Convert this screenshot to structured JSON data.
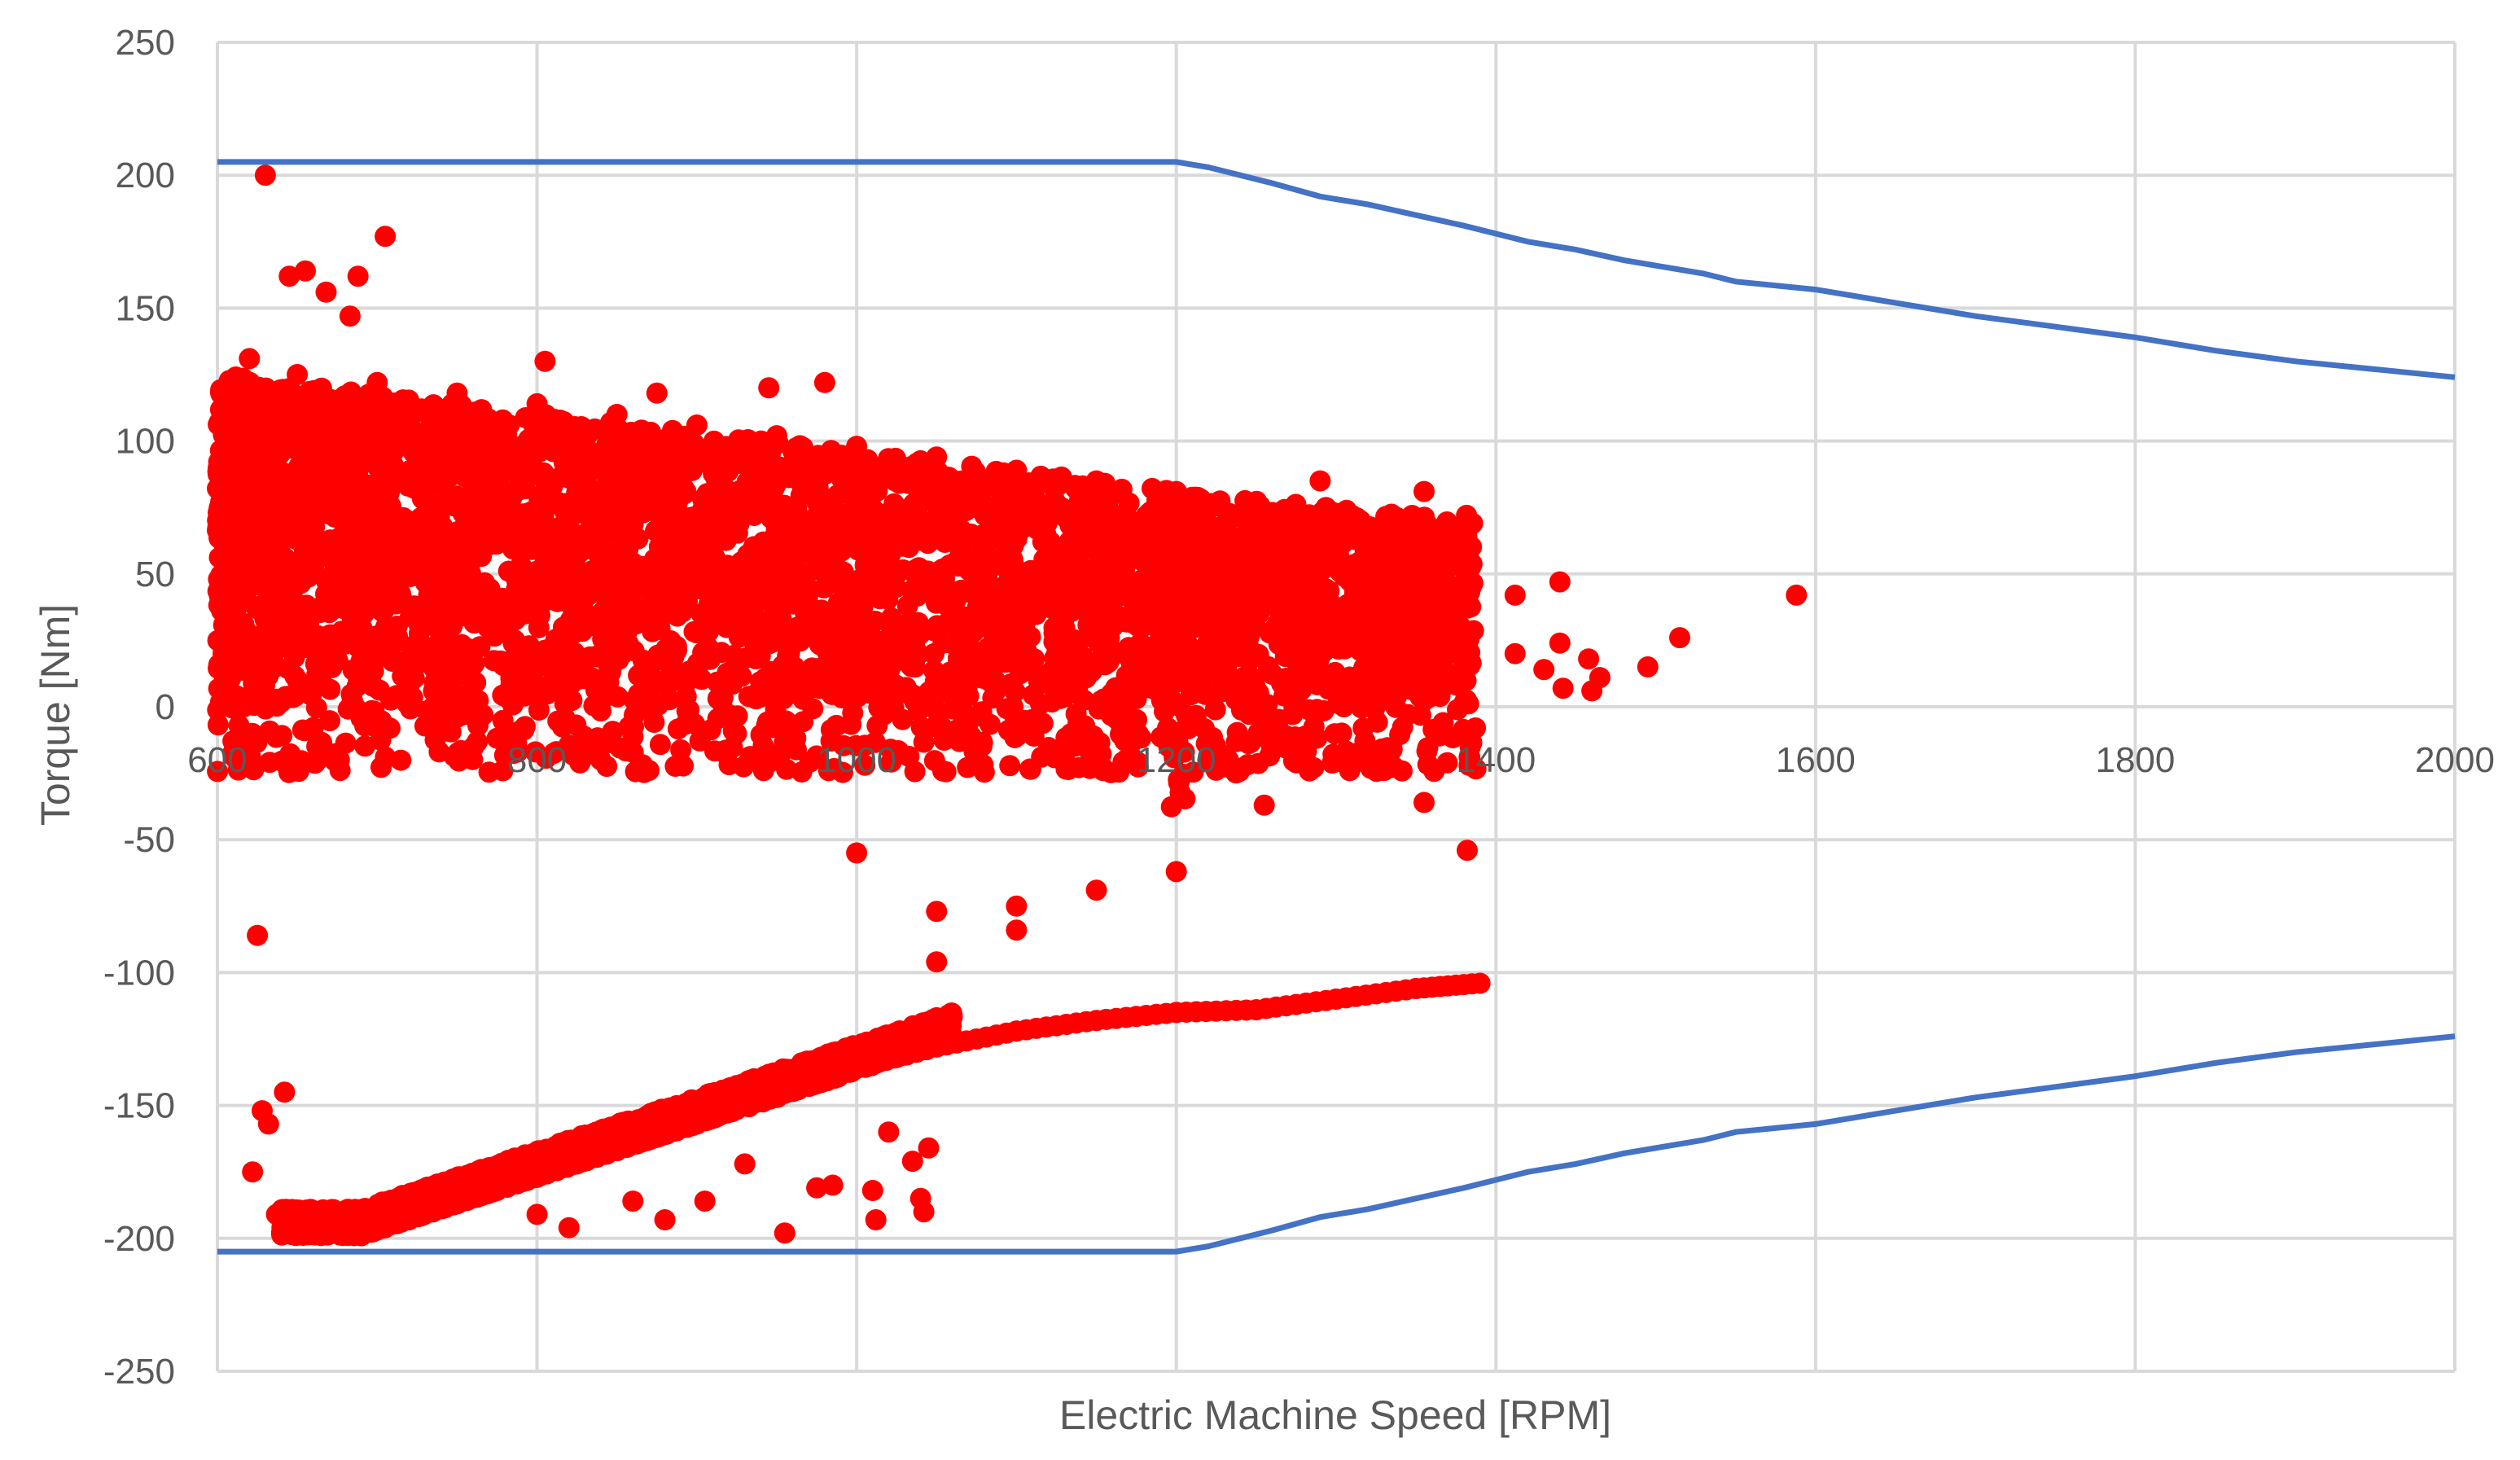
{
  "chart_data": {
    "type": "scatter",
    "title": "",
    "xlabel": "Electric Machine Speed [RPM]",
    "ylabel": "Torque [Nm]",
    "xlim": [
      600,
      2000
    ],
    "ylim": [
      -250,
      250
    ],
    "x_ticks": [
      600,
      800,
      1000,
      1200,
      1400,
      1600,
      1800,
      2000
    ],
    "y_ticks": [
      250,
      200,
      150,
      100,
      50,
      0,
      -50,
      -100,
      -150,
      -200,
      -250
    ],
    "x_tick_labels": [
      "600",
      "800",
      "1000",
      "1200",
      "1400",
      "1600",
      "1800",
      "2000"
    ],
    "y_tick_labels": [
      "250",
      "200",
      "150",
      "100",
      "50",
      "0",
      "-50",
      "-100",
      "-150",
      "-200",
      "-250"
    ],
    "grid": true,
    "legend": "none",
    "colors": {
      "limit_line": "#4472c4",
      "points": "#ff0000",
      "grid": "#d9d9d9",
      "text": "#595959"
    },
    "limit_upper": {
      "x": [
        600,
        1200,
        1220,
        1260,
        1290,
        1320,
        1350,
        1380,
        1400,
        1420,
        1450,
        1480,
        1500,
        1530,
        1550,
        1600,
        1650,
        1700,
        1750,
        1800,
        1850,
        1900,
        1950,
        2000
      ],
      "y": [
        205,
        205,
        203,
        197,
        192,
        189,
        185,
        181,
        178,
        175,
        172,
        168,
        166,
        163,
        160,
        157,
        152,
        147,
        143,
        139,
        134,
        130,
        127,
        124
      ]
    },
    "limit_lower": {
      "x": [
        600,
        1200,
        1220,
        1260,
        1290,
        1320,
        1350,
        1380,
        1400,
        1420,
        1450,
        1480,
        1500,
        1530,
        1550,
        1600,
        1650,
        1700,
        1750,
        1800,
        1850,
        1900,
        1950,
        2000
      ],
      "y": [
        -205,
        -205,
        -203,
        -197,
        -192,
        -189,
        -185,
        -181,
        -178,
        -175,
        -172,
        -168,
        -166,
        -163,
        -160,
        -157,
        -152,
        -147,
        -143,
        -139,
        -134,
        -130,
        -127,
        -124
      ]
    },
    "outlier_points": [
      {
        "x": 630,
        "y": 200
      },
      {
        "x": 705,
        "y": 177
      },
      {
        "x": 645,
        "y": 162
      },
      {
        "x": 655,
        "y": 164
      },
      {
        "x": 688,
        "y": 162
      },
      {
        "x": 668,
        "y": 156
      },
      {
        "x": 683,
        "y": 147
      },
      {
        "x": 620,
        "y": 131
      },
      {
        "x": 805,
        "y": 130
      },
      {
        "x": 980,
        "y": 122
      },
      {
        "x": 945,
        "y": 120
      },
      {
        "x": 875,
        "y": 118
      },
      {
        "x": 1290,
        "y": 85
      },
      {
        "x": 1355,
        "y": 81
      },
      {
        "x": 1310,
        "y": 72
      },
      {
        "x": 1345,
        "y": 58
      },
      {
        "x": 1440,
        "y": 47
      },
      {
        "x": 1412,
        "y": 42
      },
      {
        "x": 1588,
        "y": 42
      },
      {
        "x": 1515,
        "y": 26
      },
      {
        "x": 1440,
        "y": 24
      },
      {
        "x": 1412,
        "y": 20
      },
      {
        "x": 1458,
        "y": 18
      },
      {
        "x": 1495,
        "y": 15
      },
      {
        "x": 1430,
        "y": 14
      },
      {
        "x": 1465,
        "y": 11
      },
      {
        "x": 1442,
        "y": 7
      },
      {
        "x": 1460,
        "y": 6
      },
      {
        "x": 1362,
        "y": -9
      },
      {
        "x": 1270,
        "y": -12
      },
      {
        "x": 1310,
        "y": -22
      },
      {
        "x": 1355,
        "y": -36
      },
      {
        "x": 1255,
        "y": -37
      },
      {
        "x": 1382,
        "y": -54
      },
      {
        "x": 625,
        "y": -86
      },
      {
        "x": 628,
        "y": -152
      },
      {
        "x": 632,
        "y": -157
      },
      {
        "x": 642,
        "y": -145
      },
      {
        "x": 622,
        "y": -175
      },
      {
        "x": 637,
        "y": -191
      },
      {
        "x": 655,
        "y": -198
      },
      {
        "x": 800,
        "y": -191
      },
      {
        "x": 820,
        "y": -196
      },
      {
        "x": 860,
        "y": -186
      },
      {
        "x": 880,
        "y": -193
      },
      {
        "x": 905,
        "y": -186
      },
      {
        "x": 930,
        "y": -172
      },
      {
        "x": 955,
        "y": -198
      },
      {
        "x": 975,
        "y": -181
      },
      {
        "x": 985,
        "y": -180
      },
      {
        "x": 1010,
        "y": -182
      },
      {
        "x": 1035,
        "y": -171
      },
      {
        "x": 1040,
        "y": -185
      },
      {
        "x": 1042,
        "y": -190
      },
      {
        "x": 1045,
        "y": -166
      },
      {
        "x": 1012,
        "y": -193
      },
      {
        "x": 1020,
        "y": -160
      }
    ],
    "upper_band_points": [
      {
        "x": 650,
        "y": 125
      },
      {
        "x": 700,
        "y": 122
      },
      {
        "x": 750,
        "y": 118
      },
      {
        "x": 800,
        "y": 114
      },
      {
        "x": 850,
        "y": 110
      },
      {
        "x": 900,
        "y": 106
      },
      {
        "x": 950,
        "y": 102
      },
      {
        "x": 1000,
        "y": 98
      },
      {
        "x": 1050,
        "y": 94
      },
      {
        "x": 1100,
        "y": 89
      },
      {
        "x": 1150,
        "y": 85
      },
      {
        "x": 1200,
        "y": 81
      }
    ],
    "lower_envelope_points": [
      {
        "x": 690,
        "y": -199
      },
      {
        "x": 750,
        "y": -187
      },
      {
        "x": 800,
        "y": -177
      },
      {
        "x": 850,
        "y": -167
      },
      {
        "x": 900,
        "y": -157
      },
      {
        "x": 950,
        "y": -146
      },
      {
        "x": 1000,
        "y": -136
      },
      {
        "x": 1050,
        "y": -128
      },
      {
        "x": 1100,
        "y": -122
      },
      {
        "x": 1150,
        "y": -118
      },
      {
        "x": 1200,
        "y": -115
      },
      {
        "x": 1250,
        "y": -114
      },
      {
        "x": 1300,
        "y": -110
      },
      {
        "x": 1350,
        "y": -106
      },
      {
        "x": 1390,
        "y": -104
      }
    ],
    "mid_trail_points": [
      {
        "x": 1000,
        "y": -55
      },
      {
        "x": 1050,
        "y": -77
      },
      {
        "x": 1100,
        "y": -75
      },
      {
        "x": 1150,
        "y": -69
      },
      {
        "x": 1200,
        "y": -62
      },
      {
        "x": 1050,
        "y": -96
      },
      {
        "x": 1100,
        "y": -84
      }
    ]
  }
}
